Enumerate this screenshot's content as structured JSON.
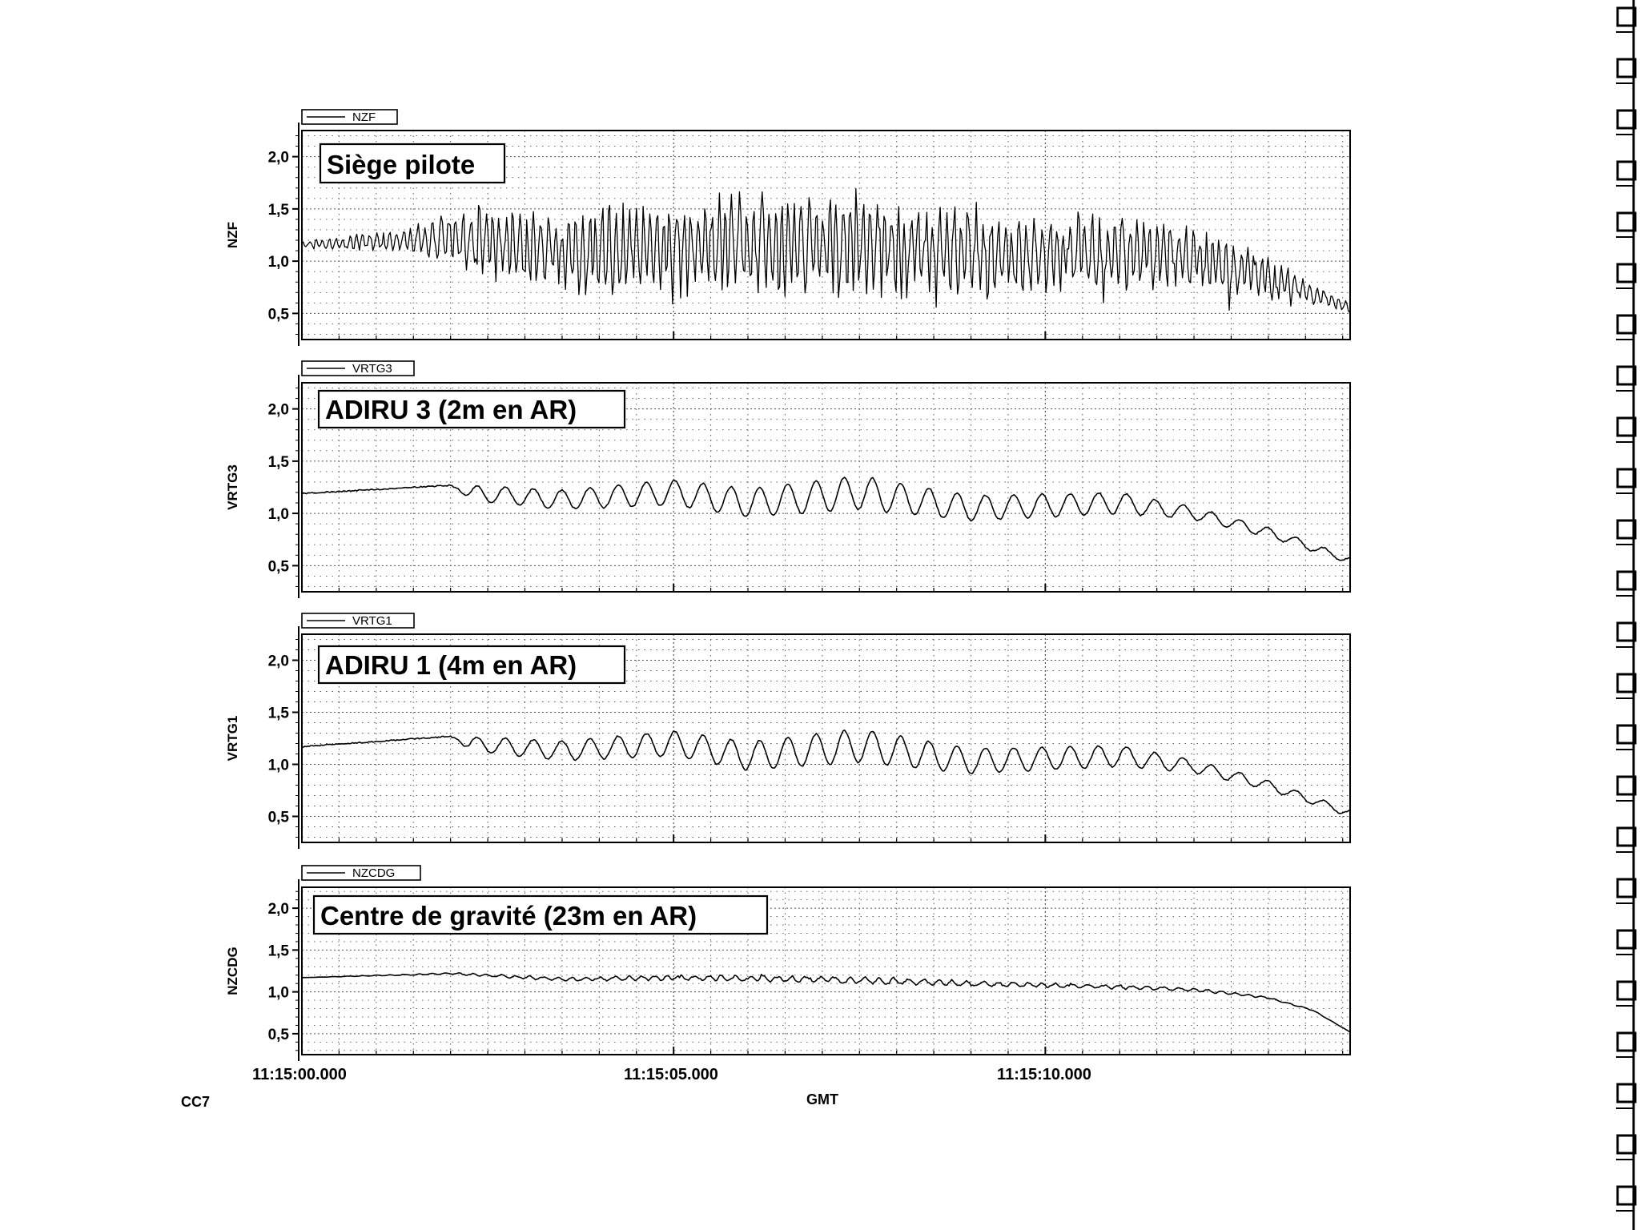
{
  "chart_data": {
    "type": "line",
    "xlabel": "GMT",
    "x_ticks": [
      "11:15:00.000",
      "11:15:05.000",
      "11:15:10.000"
    ],
    "xlim": [
      "11:15:00.000",
      "11:15:14.100"
    ],
    "grid": true,
    "footer_code": "CC7",
    "colors": {
      "trace": "#000000",
      "grid": "#555555",
      "frame": "#000000"
    },
    "panels": [
      {
        "series_name": "NZF",
        "ylabel": "NZF",
        "annotation": "Siège pilote",
        "ylim": [
          0.25,
          2.25
        ],
        "y_ticks": [
          "2,0",
          "1,5",
          "1,0",
          "0,5"
        ],
        "y_tick_values": [
          2.0,
          1.5,
          1.0,
          0.5
        ],
        "baseline": [
          [
            0,
            1.16
          ],
          [
            1.5,
            1.2
          ],
          [
            2.0,
            1.22
          ],
          [
            3.5,
            1.1
          ],
          [
            5.0,
            1.13
          ],
          [
            7.0,
            1.15
          ],
          [
            9.0,
            1.07
          ],
          [
            10.5,
            1.08
          ],
          [
            12.0,
            1.03
          ],
          [
            13.0,
            0.85
          ],
          [
            14.1,
            0.55
          ]
        ],
        "oscillation": {
          "amplitude": [
            [
              0,
              0.03
            ],
            [
              1.5,
              0.12
            ],
            [
              2.0,
              0.28
            ],
            [
              5.0,
              0.42
            ],
            [
              7.0,
              0.45
            ],
            [
              8.5,
              0.42
            ],
            [
              10.5,
              0.32
            ],
            [
              12.0,
              0.28
            ],
            [
              12.8,
              0.2
            ],
            [
              14.1,
              0.05
            ]
          ],
          "period_s": 0.1,
          "irregular": true
        },
        "x_sample": [
          0,
          1,
          2,
          3,
          4,
          5,
          6,
          7,
          8,
          9,
          10,
          11,
          12,
          13,
          14
        ],
        "y_sample": [
          1.16,
          1.2,
          1.25,
          1.1,
          1.2,
          1.15,
          1.2,
          1.1,
          1.15,
          1.1,
          1.05,
          1.1,
          1.05,
          0.8,
          0.55
        ]
      },
      {
        "series_name": "VRTG3",
        "ylabel": "VRTG3",
        "annotation": "ADIRU 3 (2m en AR)",
        "ylim": [
          0.25,
          2.25
        ],
        "y_ticks": [
          "2,0",
          "1,5",
          "1,0",
          "0,5"
        ],
        "y_tick_values": [
          2.0,
          1.5,
          1.0,
          0.5
        ],
        "baseline": [
          [
            0,
            1.19
          ],
          [
            2.0,
            1.27
          ],
          [
            2.2,
            1.2
          ],
          [
            3.5,
            1.13
          ],
          [
            5.0,
            1.2
          ],
          [
            6.0,
            1.1
          ],
          [
            7.5,
            1.2
          ],
          [
            9.0,
            1.05
          ],
          [
            11.0,
            1.1
          ],
          [
            12.0,
            1.0
          ],
          [
            13.0,
            0.82
          ],
          [
            14.1,
            0.55
          ]
        ],
        "oscillation": {
          "amplitude": [
            [
              0,
              0.0
            ],
            [
              2.1,
              0.0
            ],
            [
              2.3,
              0.07
            ],
            [
              5.0,
              0.12
            ],
            [
              7.5,
              0.16
            ],
            [
              9.0,
              0.12
            ],
            [
              11.0,
              0.1
            ],
            [
              12.0,
              0.06
            ],
            [
              14.1,
              0.03
            ]
          ],
          "period_s": 0.38,
          "irregular": false
        },
        "x_sample": [
          0,
          1,
          2,
          3,
          4,
          5,
          6,
          7,
          8,
          9,
          10,
          11,
          12,
          13,
          14
        ],
        "y_sample": [
          1.19,
          1.24,
          1.27,
          1.1,
          1.16,
          1.25,
          1.1,
          1.3,
          1.15,
          1.0,
          1.05,
          1.1,
          0.98,
          0.8,
          0.55
        ]
      },
      {
        "series_name": "VRTG1",
        "ylabel": "VRTG1",
        "annotation": "ADIRU 1 (4m en AR)",
        "ylim": [
          0.25,
          2.25
        ],
        "y_ticks": [
          "2,0",
          "1,5",
          "1,0",
          "0,5"
        ],
        "y_tick_values": [
          2.0,
          1.5,
          1.0,
          0.5
        ],
        "baseline": [
          [
            0,
            1.17
          ],
          [
            2.0,
            1.27
          ],
          [
            2.2,
            1.2
          ],
          [
            3.5,
            1.13
          ],
          [
            5.0,
            1.2
          ],
          [
            6.0,
            1.08
          ],
          [
            7.5,
            1.18
          ],
          [
            9.0,
            1.03
          ],
          [
            11.0,
            1.08
          ],
          [
            12.0,
            0.98
          ],
          [
            13.0,
            0.8
          ],
          [
            14.1,
            0.53
          ]
        ],
        "oscillation": {
          "amplitude": [
            [
              0,
              0.0
            ],
            [
              2.1,
              0.0
            ],
            [
              2.3,
              0.07
            ],
            [
              5.0,
              0.12
            ],
            [
              7.5,
              0.16
            ],
            [
              9.0,
              0.12
            ],
            [
              11.0,
              0.1
            ],
            [
              12.0,
              0.06
            ],
            [
              14.1,
              0.03
            ]
          ],
          "period_s": 0.38,
          "irregular": false
        },
        "x_sample": [
          0,
          1,
          2,
          3,
          4,
          5,
          6,
          7,
          8,
          9,
          10,
          11,
          12,
          13,
          14
        ],
        "y_sample": [
          1.17,
          1.22,
          1.27,
          1.1,
          1.15,
          1.25,
          1.08,
          1.28,
          1.12,
          0.98,
          1.03,
          1.08,
          0.96,
          0.78,
          0.53
        ]
      },
      {
        "series_name": "NZCDG",
        "ylabel": "NZCDG",
        "annotation": "Centre de gravité (23m en AR)",
        "ylim": [
          0.25,
          2.25
        ],
        "y_ticks": [
          "2,0",
          "1,5",
          "1,0",
          "0,5"
        ],
        "y_tick_values": [
          2.0,
          1.5,
          1.0,
          0.5
        ],
        "baseline": [
          [
            0,
            1.17
          ],
          [
            2.0,
            1.22
          ],
          [
            3.5,
            1.15
          ],
          [
            5.0,
            1.17
          ],
          [
            7.0,
            1.15
          ],
          [
            9.0,
            1.1
          ],
          [
            10.5,
            1.07
          ],
          [
            12.0,
            1.03
          ],
          [
            13.0,
            0.93
          ],
          [
            13.6,
            0.78
          ],
          [
            14.1,
            0.52
          ]
        ],
        "oscillation": {
          "amplitude": [
            [
              0,
              0.0
            ],
            [
              2.0,
              0.01
            ],
            [
              3.0,
              0.02
            ],
            [
              5.0,
              0.03
            ],
            [
              8.0,
              0.04
            ],
            [
              10.0,
              0.025
            ],
            [
              12.0,
              0.02
            ],
            [
              14.1,
              0.0
            ]
          ],
          "period_s": 0.2,
          "irregular": true
        },
        "x_sample": [
          0,
          1,
          2,
          3,
          4,
          5,
          6,
          7,
          8,
          9,
          10,
          11,
          12,
          13,
          14
        ],
        "y_sample": [
          1.17,
          1.2,
          1.22,
          1.17,
          1.15,
          1.17,
          1.16,
          1.15,
          1.13,
          1.1,
          1.07,
          1.05,
          1.03,
          0.93,
          0.52
        ]
      }
    ]
  }
}
